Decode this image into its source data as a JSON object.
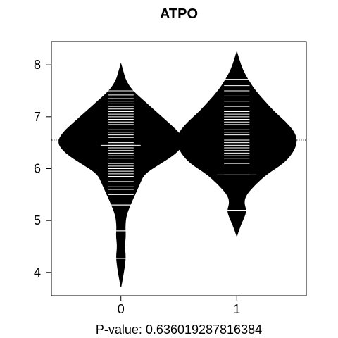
{
  "chart_data": {
    "type": "beanplot",
    "title": "ATPO",
    "xlabel": "P-value: 0.636019287816384",
    "ylabel": "",
    "categories": [
      "0",
      "1"
    ],
    "ylim": [
      3.55,
      8.45
    ],
    "xlim": [
      -0.6,
      1.6
    ],
    "yticks": [
      4,
      5,
      6,
      7,
      8
    ],
    "overall_mean": 6.55,
    "grid": false,
    "colors": {
      "bean": "#000000",
      "background": "#ffffff",
      "lines": "#ffffff"
    },
    "series": [
      {
        "category": "0",
        "mean": 6.55,
        "density": [
          [
            3.72,
            0.0
          ],
          [
            3.9,
            0.015
          ],
          [
            4.1,
            0.03
          ],
          [
            4.3,
            0.04
          ],
          [
            4.5,
            0.03
          ],
          [
            4.7,
            0.04
          ],
          [
            4.9,
            0.035
          ],
          [
            5.1,
            0.045
          ],
          [
            5.3,
            0.08
          ],
          [
            5.5,
            0.12
          ],
          [
            5.7,
            0.16
          ],
          [
            5.9,
            0.2
          ],
          [
            6.1,
            0.34
          ],
          [
            6.3,
            0.48
          ],
          [
            6.5,
            0.55
          ],
          [
            6.7,
            0.5
          ],
          [
            6.9,
            0.4
          ],
          [
            7.1,
            0.3
          ],
          [
            7.3,
            0.2
          ],
          [
            7.5,
            0.1
          ],
          [
            7.7,
            0.04
          ],
          [
            7.9,
            0.015
          ],
          [
            8.02,
            0.0
          ]
        ],
        "observations": [
          4.27,
          4.8,
          5.3,
          5.5,
          5.6,
          5.65,
          5.75,
          5.85,
          5.9,
          5.95,
          6.0,
          6.05,
          6.1,
          6.15,
          6.2,
          6.25,
          6.3,
          6.35,
          6.4,
          6.45,
          6.5,
          6.55,
          6.6,
          6.65,
          6.7,
          6.75,
          6.8,
          6.85,
          6.9,
          6.95,
          7.0,
          7.05,
          7.1,
          7.15,
          7.2,
          7.25,
          7.3,
          7.35,
          7.42,
          7.5
        ],
        "long_lines": [
          4.27,
          4.8,
          5.3,
          6.45,
          7.5
        ]
      },
      {
        "category": "1",
        "mean": 6.6,
        "density": [
          [
            4.7,
            0.0
          ],
          [
            4.9,
            0.03
          ],
          [
            5.1,
            0.07
          ],
          [
            5.2,
            0.08
          ],
          [
            5.35,
            0.06
          ],
          [
            5.5,
            0.08
          ],
          [
            5.7,
            0.16
          ],
          [
            5.9,
            0.26
          ],
          [
            6.1,
            0.4
          ],
          [
            6.3,
            0.48
          ],
          [
            6.5,
            0.52
          ],
          [
            6.7,
            0.5
          ],
          [
            6.9,
            0.42
          ],
          [
            7.1,
            0.32
          ],
          [
            7.3,
            0.24
          ],
          [
            7.5,
            0.16
          ],
          [
            7.7,
            0.1
          ],
          [
            7.9,
            0.05
          ],
          [
            8.1,
            0.02
          ],
          [
            8.25,
            0.0
          ]
        ],
        "observations": [
          5.2,
          5.88,
          6.1,
          6.2,
          6.25,
          6.3,
          6.35,
          6.4,
          6.45,
          6.5,
          6.55,
          6.6,
          6.65,
          6.7,
          6.75,
          6.8,
          6.85,
          6.9,
          6.95,
          7.0,
          7.05,
          7.1,
          7.2,
          7.3,
          7.4,
          7.5,
          7.6,
          7.72
        ],
        "long_lines": [
          5.2,
          5.88,
          7.72
        ]
      }
    ]
  }
}
